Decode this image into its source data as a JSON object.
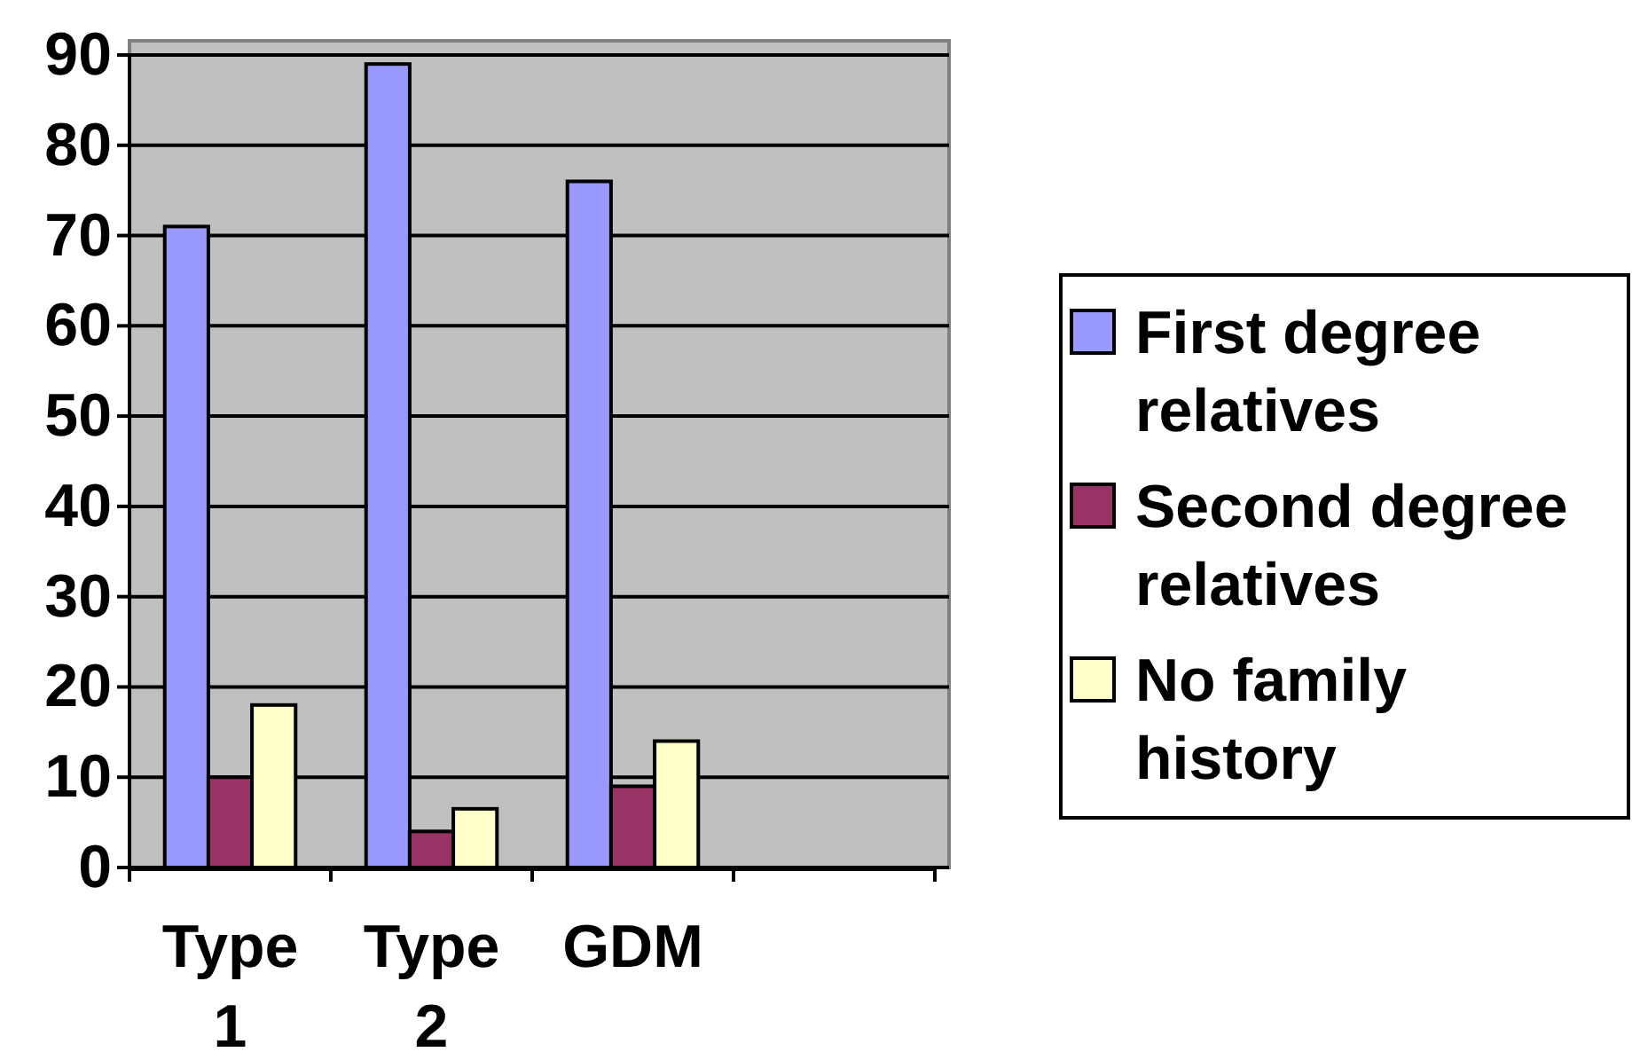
{
  "chart_data": {
    "type": "bar",
    "categories": [
      "Type 1",
      "Type 2",
      "GDM",
      null
    ],
    "series": [
      {
        "name": "First degree relatives",
        "color": "#9999ff",
        "values": [
          71,
          89,
          76,
          null
        ]
      },
      {
        "name": "Second degree relatives",
        "color": "#993366",
        "values": [
          10,
          4,
          9,
          null
        ]
      },
      {
        "name": "No family history",
        "color": "#ffffcc",
        "values": [
          18,
          6.5,
          14,
          null
        ]
      }
    ],
    "ylim": [
      0,
      90
    ],
    "yticks": [
      0,
      10,
      20,
      30,
      40,
      50,
      60,
      70,
      80,
      90
    ],
    "grid": "y",
    "legend": "right"
  }
}
